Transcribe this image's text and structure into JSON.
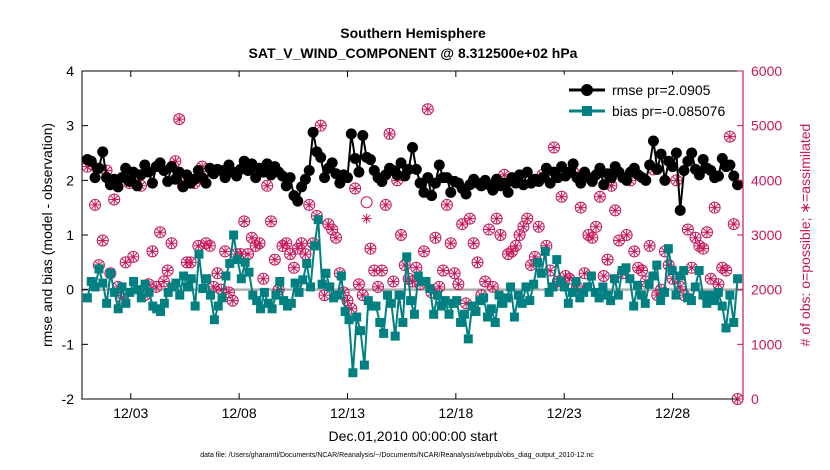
{
  "chart_data": {
    "type": "line",
    "title": "Southern Hemisphere",
    "subtitle": "SAT_V_WIND_COMPONENT @ 8.312500e+02 hPa",
    "xlabel": "Dec.01,2010 00:00:00 start",
    "ylabel": "rmse and bias (model - observation)",
    "ylabel_right": "# of obs: o=possible; ∗=assimilated",
    "footnote": "data file: /Users/gharamti/Documents/NCAR/Reanalysis/~/Documents/NCAR/Reanalysis/webpub/obs_diag_output_2010-12.nc",
    "xlim": [
      0.75,
      31.25
    ],
    "ylim": [
      -2,
      4
    ],
    "ylim_right": [
      0,
      6000
    ],
    "x_ticks": [
      3,
      8,
      13,
      18,
      23,
      28
    ],
    "x_tick_labels": [
      "12/03",
      "12/08",
      "12/13",
      "12/18",
      "12/23",
      "12/28"
    ],
    "y_ticks": [
      -2,
      -1,
      0,
      1,
      2,
      3,
      4
    ],
    "y_tick_labels": [
      "-2",
      "-1",
      "0",
      "1",
      "2",
      "3",
      "4"
    ],
    "y_ticks_right": [
      0,
      1000,
      2000,
      3000,
      4000,
      5000,
      6000
    ],
    "y_tick_labels_right": [
      "0",
      "1000",
      "2000",
      "3000",
      "4000",
      "5000",
      "6000"
    ],
    "zero_line": 0,
    "legend_position": "top-right",
    "colors": {
      "rmse": "#000000",
      "bias": "#008080",
      "obs": "#c8175a",
      "zero": "#b0b0b0"
    },
    "series": [
      {
        "name": "rmse pr=2.0905",
        "axis": "left",
        "values": [
          2.38,
          2.35,
          2.05,
          2.22,
          2.52,
          2.05,
          1.92,
          2.02,
          1.88,
          2.05,
          2.22,
          1.98,
          2.15,
          1.9,
          2.1,
          2.28,
          2.15,
          1.95,
          2.25,
          2.32,
          2.18,
          1.98,
          2.25,
          2.02,
          2.15,
          1.88,
          2.1,
          1.95,
          2.02,
          2.18,
          2.05,
          1.95,
          2.22,
          2.12,
          2.2,
          2.18,
          2.05,
          2.28,
          2.15,
          2.08,
          2.2,
          2.35,
          2.18,
          2.3,
          2.05,
          2.22,
          2.15,
          2.3,
          2.1,
          2.25,
          2.15,
          2.08,
          1.9,
          2.05,
          1.72,
          1.62,
          1.88,
          2.02,
          2.18,
          2.88,
          2.52,
          2.42,
          2.05,
          2.22,
          2.32,
          2.12,
          1.95,
          2.1,
          2.05,
          2.85,
          2.4,
          2.15,
          2.82,
          2.42,
          2.38,
          2.18,
          2.05,
          1.98,
          2.1,
          2.22,
          2.18,
          2.1,
          2.32,
          2.08,
          2.2,
          2.6,
          2.2,
          1.95,
          1.78,
          2.05,
          1.72,
          1.95,
          2.28,
          2.05,
          2.05,
          1.78,
          1.98,
          1.95,
          1.85,
          1.75,
          1.92,
          2.02,
          1.95,
          1.9,
          2.0,
          1.92,
          1.82,
          2.02,
          1.9,
          1.95,
          1.78,
          2.05,
          1.95,
          2.1,
          1.92,
          2.15,
          1.95,
          2.02,
          1.98,
          2.05,
          2.22,
          1.95,
          2.15,
          2.05,
          2.25,
          2.08,
          2.15,
          2.3,
          2.05,
          1.95,
          2.15,
          2.05,
          1.98,
          2.1,
          2.22,
          1.92,
          2.12,
          2.05,
          2.25,
          2.15,
          2.05,
          2.0,
          2.15,
          2.22,
          2.1,
          2.05,
          2.0,
          2.28,
          2.72,
          2.2,
          2.48,
          2.0,
          2.35,
          2.25,
          2.5,
          1.45,
          2.18,
          2.35,
          2.5,
          2.2,
          2.1,
          2.38,
          2.22,
          2.18,
          2.05,
          2.08,
          2.4,
          2.25,
          2.28,
          2.08,
          1.92
        ]
      },
      {
        "name": "bias pr=-0.085076",
        "axis": "left",
        "values": [
          -0.15,
          0.15,
          0.05,
          0.38,
          0.12,
          -0.25,
          0.3,
          -0.05,
          -0.35,
          0.05,
          -0.25,
          -0.05,
          0.15,
          0.0,
          -0.15,
          0.1,
          -0.05,
          -0.3,
          -0.35,
          -0.4,
          -0.25,
          -0.05,
          0.05,
          0.12,
          -0.1,
          0.25,
          0.05,
          0.2,
          -0.3,
          0.65,
          0.02,
          0.2,
          -0.1,
          -0.55,
          -0.3,
          -0.15,
          0.25,
          0.48,
          1.0,
          0.55,
          0.2,
          0.5,
          0.32,
          -0.1,
          -0.2,
          -0.35,
          -0.05,
          -0.25,
          -0.35,
          -0.1,
          0.15,
          -0.2,
          -0.3,
          -0.25,
          0.12,
          -0.05,
          0.18,
          0.48,
          0.05,
          0.8,
          1.28,
          0.1,
          0.3,
          0.05,
          -0.15,
          -0.1,
          0.25,
          -0.4,
          -0.55,
          -1.52,
          -0.5,
          -0.75,
          -1.38,
          -0.2,
          -0.3,
          -0.3,
          -0.6,
          -0.8,
          -0.1,
          -0.25,
          -0.85,
          -0.1,
          -0.6,
          0.6,
          -0.2,
          -0.45,
          0.25,
          0.15,
          0.15,
          0.02,
          -0.45,
          -0.1,
          -0.3,
          -0.2,
          -0.45,
          -0.25,
          -0.2,
          -0.6,
          -0.45,
          -0.9,
          -0.3,
          -0.4,
          -0.2,
          -0.15,
          -0.5,
          -0.35,
          -0.6,
          -0.1,
          -0.25,
          -0.15,
          0.05,
          -0.5,
          -0.1,
          -0.25,
          0.05,
          -0.2,
          0.1,
          0.5,
          0.3,
          0.7,
          -0.05,
          0.05,
          0.55,
          0.15,
          0.05,
          -0.25,
          -0.05,
          0.15,
          -0.15,
          -0.05,
          0.05,
          0.25,
          -0.05,
          -0.15,
          0.05,
          -0.1,
          -0.2,
          0.2,
          -0.1,
          0.35,
          0.4,
          0.2,
          -0.3,
          0.08,
          -0.1,
          -0.25,
          0.1,
          0.25,
          0.45,
          -0.2,
          -0.05,
          0.75,
          0.35,
          -0.1,
          0.25,
          0.35,
          -0.15,
          -0.2,
          0.05,
          0.35,
          -0.1,
          -0.25,
          -0.1,
          -0.2,
          -0.05,
          -0.3,
          -0.7,
          -0.1,
          -0.6,
          0.2
        ]
      },
      {
        "name": "# of obs: possible",
        "axis": "right",
        "values": [
          4250,
          4300,
          3550,
          2450,
          2900,
          4180,
          2300,
          3650,
          2050,
          1850,
          2500,
          3950,
          2600,
          4100,
          3900,
          1900,
          2100,
          2700,
          2050,
          3050,
          2150,
          2350,
          2850,
          4350,
          5120,
          3900,
          2500,
          2500,
          3950,
          2800,
          4250,
          2850,
          2800,
          2050,
          2300,
          2000,
          2700,
          1950,
          1800,
          2650,
          2650,
          3250,
          2650,
          2950,
          2800,
          2850,
          2200,
          3900,
          3250,
          2550,
          2000,
          2800,
          2850,
          2650,
          2400,
          2750,
          2850,
          2650,
          3550,
          2850,
          3350,
          5000,
          1900,
          3200,
          3100,
          2950,
          2300,
          1950,
          1800,
          1650,
          3850,
          2100,
          1900,
          3600,
          2750,
          2350,
          2050,
          2350,
          3550,
          4850,
          2150,
          4000,
          3000,
          2450,
          2200,
          2150,
          2400,
          2100,
          2700,
          5300,
          1950,
          2950,
          2050,
          2350,
          3550,
          2850,
          2300,
          2100,
          3200,
          1750,
          3300,
          2850,
          2500,
          1900,
          2150,
          3100,
          2050,
          3300,
          3000,
          4100,
          2650,
          2700,
          2800,
          3000,
          3150,
          3300,
          2450,
          2600,
          3150,
          4100,
          2800,
          2350,
          4600,
          2150,
          3700,
          2250,
          2200,
          4150,
          2050,
          3500,
          2300,
          3000,
          2950,
          3150,
          3700,
          2250,
          2550,
          3900,
          3450,
          2900,
          2300,
          3000,
          4000,
          2700,
          2400,
          2350,
          2150,
          2800,
          4200,
          1900,
          2000,
          2700,
          2450,
          2200,
          4000,
          2050,
          1900,
          3100,
          2400,
          2950,
          2800,
          2750,
          3050,
          2200,
          3500,
          2100,
          2400,
          2350,
          4800,
          3200,
          0
        ]
      },
      {
        "name": "# of obs: assimilated",
        "axis": "right",
        "values": [
          4250,
          4300,
          3550,
          2450,
          2900,
          4180,
          2300,
          3650,
          2050,
          1850,
          2500,
          3950,
          2600,
          4100,
          3900,
          1900,
          2100,
          2700,
          2050,
          3050,
          2150,
          2350,
          2850,
          4350,
          5120,
          3900,
          2500,
          2500,
          3950,
          2800,
          4250,
          2850,
          2800,
          2050,
          2300,
          2000,
          2700,
          1950,
          1800,
          2650,
          2650,
          3250,
          2650,
          2950,
          2800,
          2850,
          2200,
          3900,
          3250,
          2550,
          2000,
          2800,
          2850,
          2650,
          2400,
          2750,
          2850,
          2650,
          3550,
          2850,
          3350,
          5000,
          1900,
          3200,
          3100,
          2950,
          2300,
          1950,
          1800,
          1650,
          3850,
          2100,
          1900,
          3300,
          2750,
          2350,
          2050,
          2350,
          3550,
          4850,
          2150,
          4000,
          3000,
          2450,
          2200,
          2150,
          2400,
          2100,
          2700,
          5300,
          1950,
          2950,
          2050,
          2350,
          3550,
          2850,
          2300,
          2100,
          3200,
          1750,
          3300,
          2850,
          2500,
          1900,
          2150,
          3100,
          2050,
          3300,
          3000,
          4100,
          2650,
          2700,
          2800,
          3000,
          3150,
          3300,
          2450,
          2600,
          3150,
          4100,
          2800,
          2350,
          4600,
          2150,
          3700,
          2250,
          2200,
          4150,
          2050,
          3500,
          2300,
          3000,
          2950,
          3150,
          3700,
          2250,
          2550,
          3900,
          3450,
          2900,
          2300,
          3000,
          4000,
          2700,
          2400,
          2350,
          2150,
          2800,
          4200,
          1900,
          2000,
          2700,
          2450,
          2200,
          4000,
          2050,
          1900,
          3100,
          2400,
          2950,
          2800,
          2750,
          3050,
          2200,
          3500,
          2100,
          2400,
          2350,
          4800,
          3200,
          0
        ]
      }
    ]
  }
}
